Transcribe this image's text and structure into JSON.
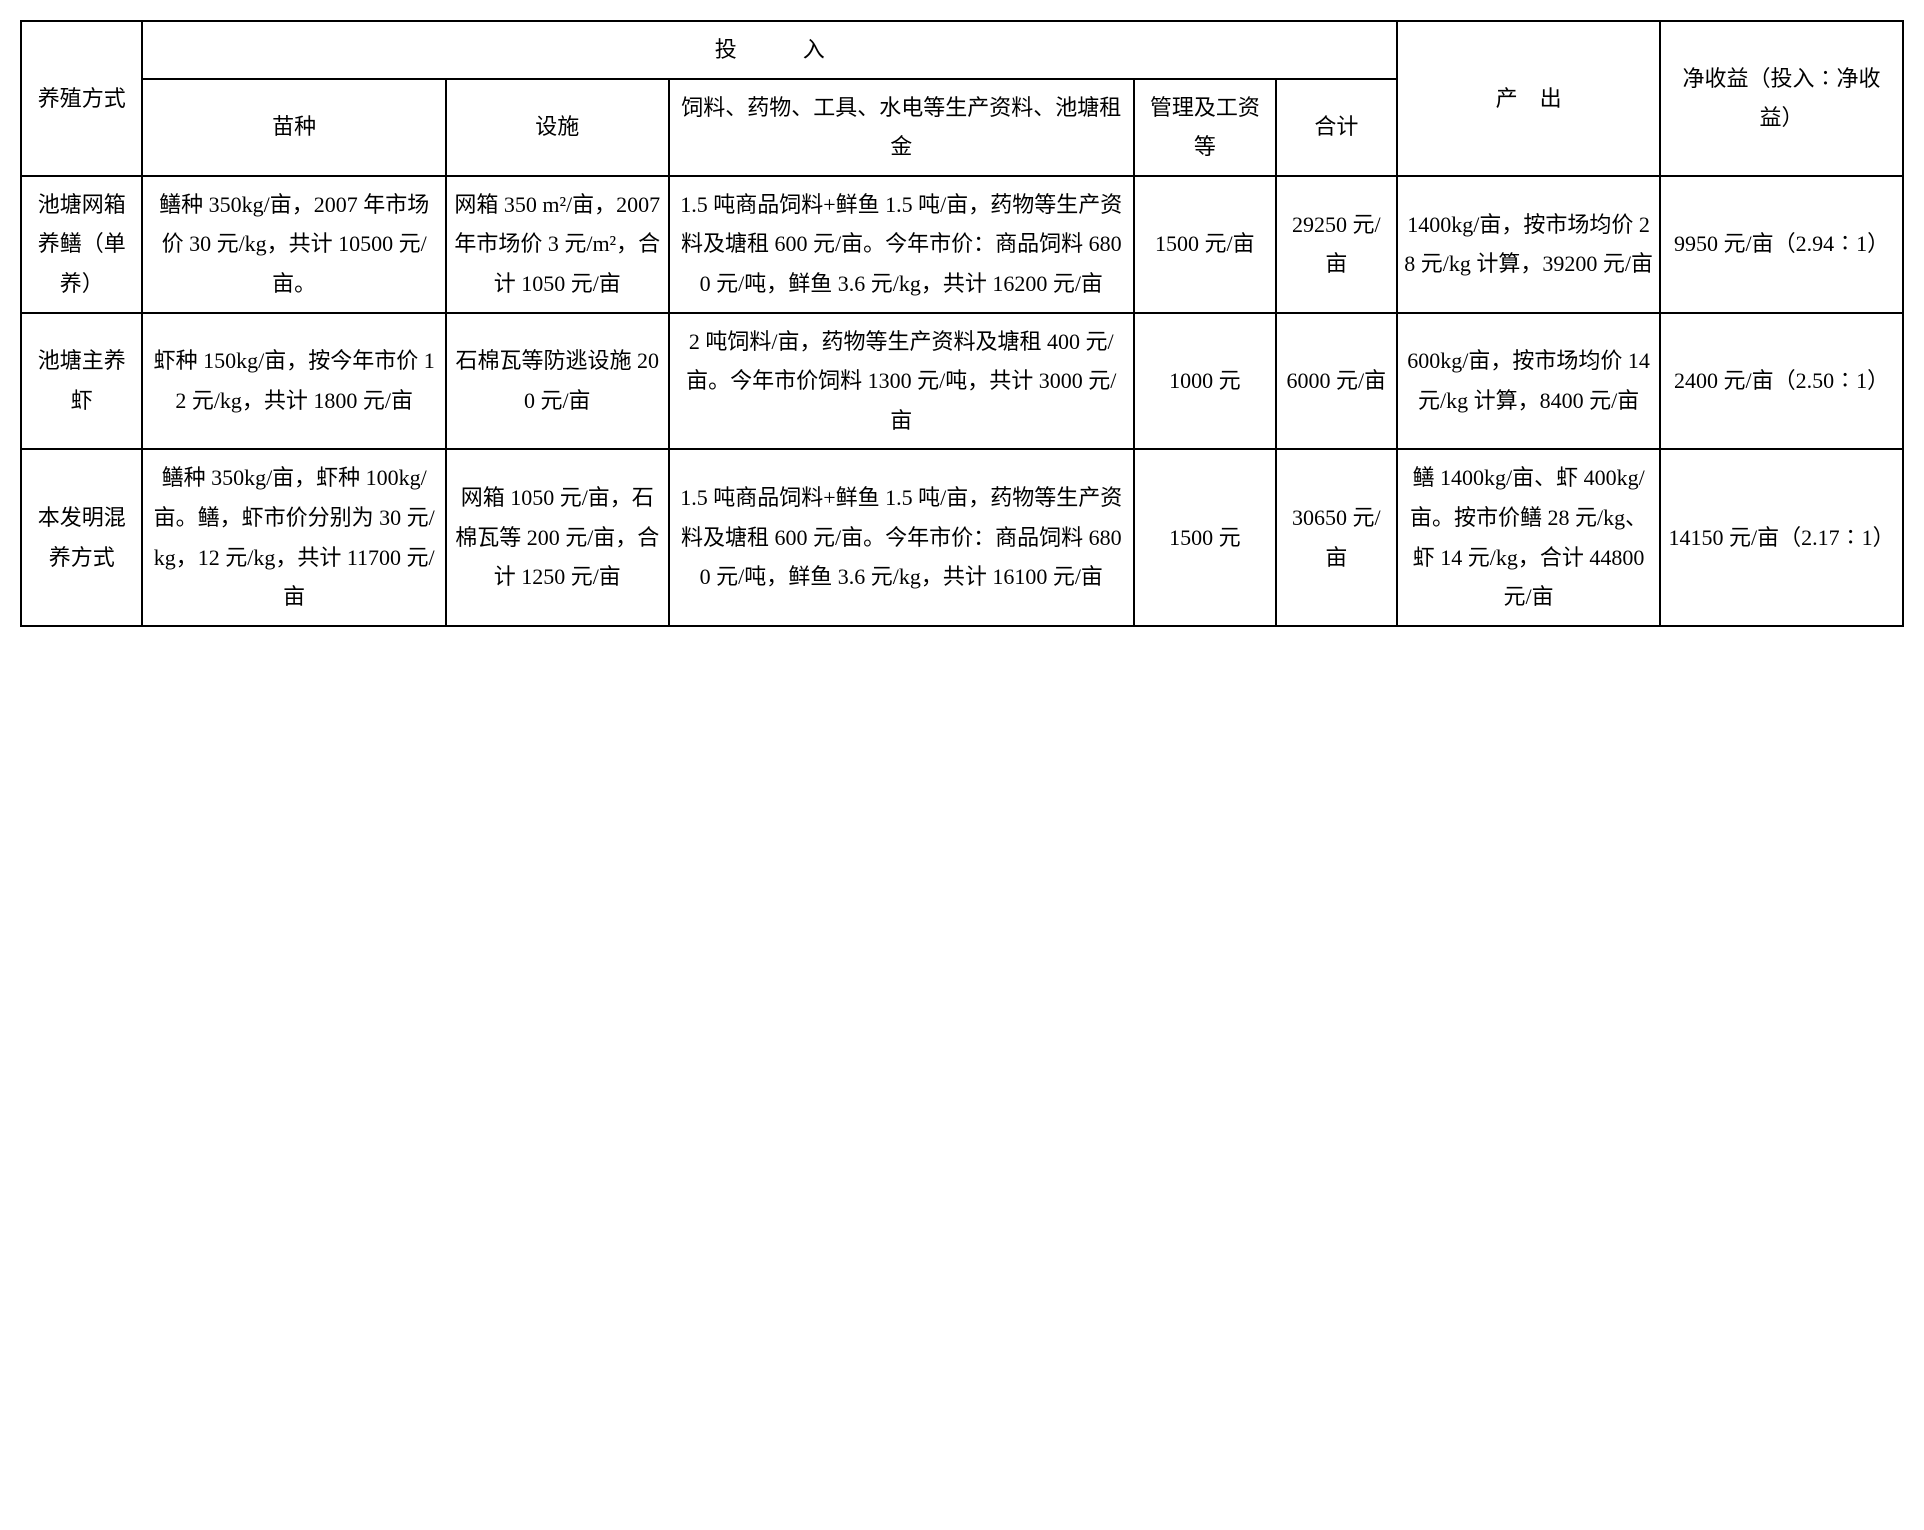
{
  "headers": {
    "method": "养殖方式",
    "input_group": "投　　　入",
    "seed": "苗种",
    "facility": "设施",
    "feed": "饲料、药物、工具、水电等生产资料、池塘租金",
    "management": "管理及工资等",
    "total": "合计",
    "output": "产　出",
    "net_income": "净收益（投入∶净收益）"
  },
  "rows": [
    {
      "method": "池塘网箱养鳝（单养）",
      "seed": "鳝种 350kg/亩，2007 年市场价 30 元/kg，共计 10500 元/亩。",
      "facility": "网箱 350 m²/亩，2007 年市场价 3 元/m²，合计 1050 元/亩",
      "feed": "1.5 吨商品饲料+鲜鱼 1.5 吨/亩，药物等生产资料及塘租 600 元/亩。今年市价：商品饲料 6800 元/吨，鲜鱼 3.6 元/kg，共计 16200 元/亩",
      "management": "1500 元/亩",
      "total": "29250 元/亩",
      "output": "1400kg/亩，按市场均价 28 元/kg 计算，39200 元/亩",
      "net_income": "9950 元/亩（2.94∶1）"
    },
    {
      "method": "池塘主养虾",
      "seed": "虾种 150kg/亩，按今年市价 12 元/kg，共计 1800 元/亩",
      "facility": "石棉瓦等防逃设施 200 元/亩",
      "feed": "2 吨饲料/亩，药物等生产资料及塘租 400 元/亩。今年市价饲料 1300 元/吨，共计 3000 元/亩",
      "management": "1000 元",
      "total": "6000 元/亩",
      "output": "600kg/亩，按市场均价 14 元/kg 计算，8400 元/亩",
      "net_income": "2400 元/亩（2.50∶1）"
    },
    {
      "method": "本发明混养方式",
      "seed": "鳝种 350kg/亩，虾种 100kg/亩。鳝，虾市价分别为 30 元/kg，12 元/kg，共计 11700 元/亩",
      "facility": "网箱 1050 元/亩，石棉瓦等 200 元/亩，合计 1250 元/亩",
      "feed": "1.5 吨商品饲料+鲜鱼 1.5 吨/亩，药物等生产资料及塘租 600 元/亩。今年市价：商品饲料 6800 元/吨，鲜鱼 3.6 元/kg，共计 16100 元/亩",
      "management": "1500 元",
      "total": "30650 元/亩",
      "output": "鳝 1400kg/亩、虾 400kg/亩。按市价鳝 28 元/kg、虾 14 元/kg，合计 44800 元/亩",
      "net_income": "14150 元/亩（2.17∶1）"
    }
  ]
}
